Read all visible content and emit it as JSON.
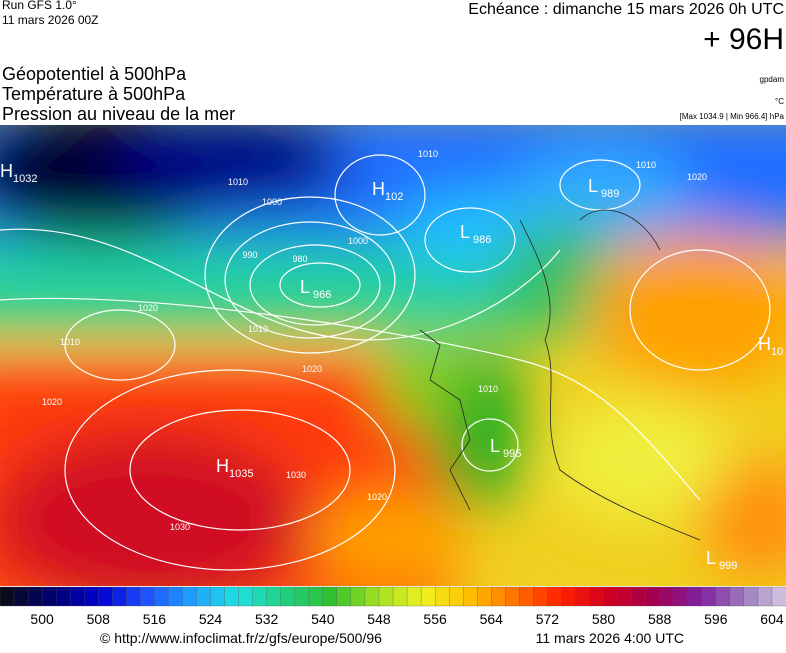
{
  "header": {
    "run": "Run GFS 1.0°",
    "run_date": "11 mars 2026 00Z",
    "valid": "Echéance : dimanche 15 mars 2026 0h UTC",
    "lead": "+ 96H",
    "fields": [
      "Géopotentiel à 500hPa",
      "Température à 500hPa",
      "Pression au niveau de la mer"
    ],
    "units": [
      "gpdam",
      "°C",
      "[Max 1034.9 | Min 966.4] hPa"
    ]
  },
  "map": {
    "centers": [
      {
        "letter": "H",
        "value": "1032"
      },
      {
        "letter": "H",
        "value": "102"
      },
      {
        "letter": "L",
        "value": "986"
      },
      {
        "letter": "L",
        "value": "989"
      },
      {
        "letter": "L",
        "value": "966"
      },
      {
        "letter": "H",
        "value": "10"
      },
      {
        "letter": "H",
        "value": "1035"
      },
      {
        "letter": "L",
        "value": "995"
      },
      {
        "letter": "L",
        "value": "999"
      }
    ],
    "isobar_labels": [
      "1010",
      "1000",
      "990",
      "980",
      "1010",
      "1000",
      "1010",
      "1020",
      "1010",
      "1020",
      "1020",
      "1030",
      "1030",
      "1020",
      "1010",
      "1010",
      "1020"
    ]
  },
  "colorbar": {
    "lim": [
      494,
      606
    ],
    "step": 2,
    "ticks": [
      500,
      508,
      516,
      524,
      532,
      540,
      548,
      556,
      564,
      572,
      580,
      588,
      596,
      604
    ],
    "colors": [
      "#0a0a1e",
      "#000070",
      "#0000d0",
      "#1e50ff",
      "#1ea0ff",
      "#20e0e0",
      "#20d080",
      "#30c030",
      "#a0e020",
      "#f0f020",
      "#ffc000",
      "#ff7000",
      "#ff2000",
      "#d00020",
      "#a00050",
      "#8020a0",
      "#a080c0",
      "#e0d8e8"
    ]
  },
  "footer": {
    "source": "© http://www.infoclimat.fr/z/gfs/europe/500/96",
    "generated": "11 mars 2026  4:00 UTC"
  }
}
